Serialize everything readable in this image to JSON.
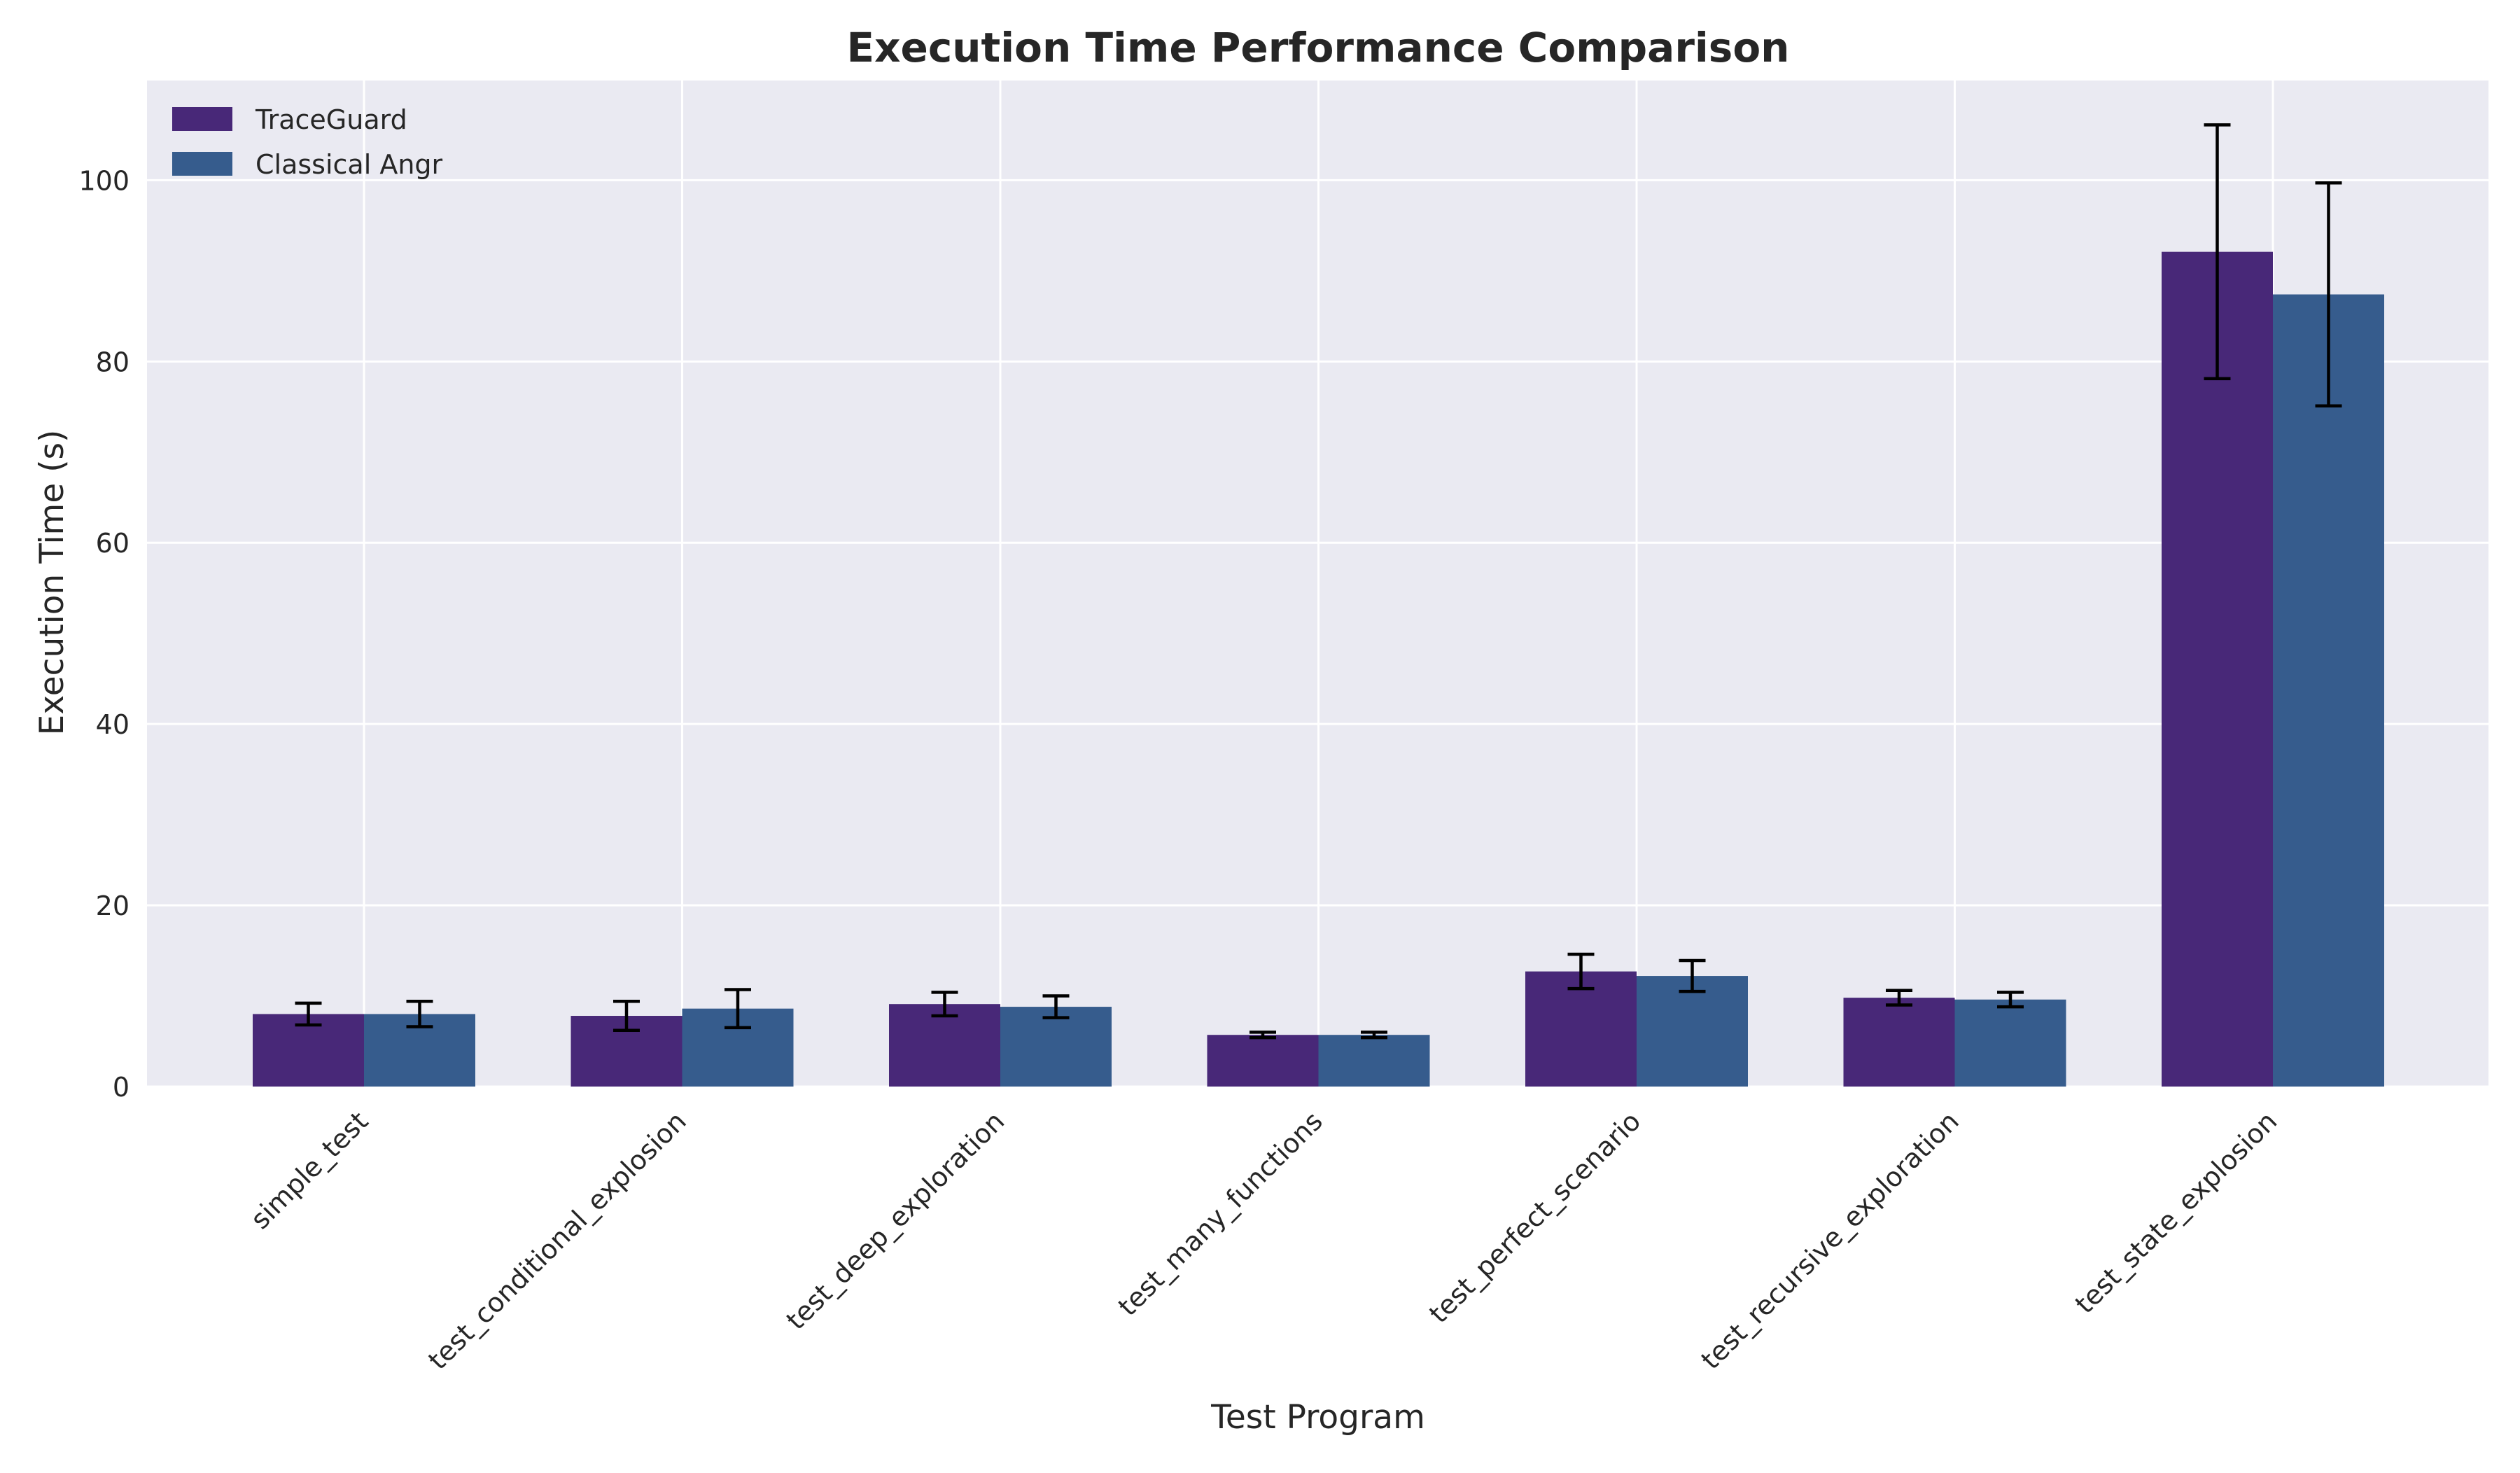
{
  "chart_data": {
    "type": "bar",
    "title": "Execution Time Performance Comparison",
    "xlabel": "Test Program",
    "ylabel": "Execution Time (s)",
    "ylim": [
      0,
      111
    ],
    "yticks": [
      0,
      20,
      40,
      60,
      80,
      100
    ],
    "grid": true,
    "legend_position": "top-left",
    "categories": [
      "simple_test",
      "test_conditional_explosion",
      "test_deep_exploration",
      "test_many_functions",
      "test_perfect_scenario",
      "test_recursive_exploration",
      "test_state_explosion"
    ],
    "series": [
      {
        "name": "TraceGuard",
        "color": "#482878",
        "values": [
          8.0,
          7.8,
          9.1,
          5.7,
          12.7,
          9.8,
          92.1
        ],
        "errors": [
          1.2,
          1.6,
          1.3,
          0.3,
          1.9,
          0.8,
          14.0
        ]
      },
      {
        "name": "Classical Angr",
        "color": "#365c8d",
        "values": [
          8.0,
          8.6,
          8.8,
          5.7,
          12.2,
          9.6,
          87.4
        ],
        "errors": [
          1.4,
          2.1,
          1.2,
          0.3,
          1.7,
          0.8,
          12.3
        ]
      }
    ],
    "colors": {
      "plot_background": "#eaeaf2",
      "grid": "#ffffff",
      "text": "#262626",
      "error_bar": "#000000"
    }
  }
}
